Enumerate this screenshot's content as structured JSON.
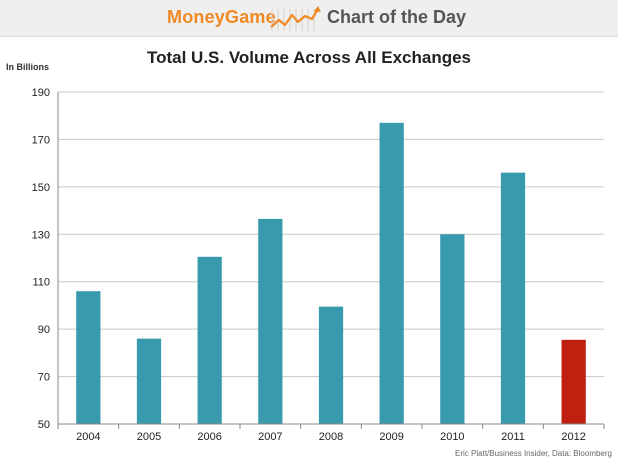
{
  "banner": {
    "brand": "MoneyGame",
    "subtitle": "Chart of the Day",
    "logo_icon": "rising-line-chart-icon",
    "colors": {
      "brand": "#f08a24",
      "subtitle": "#555555",
      "background": "#efefef"
    }
  },
  "chart_data": {
    "type": "bar",
    "title": "Total U.S. Volume Across All Exchanges",
    "ylabel": "In Billions",
    "xlabel": "",
    "categories": [
      "2004",
      "2005",
      "2006",
      "2007",
      "2008",
      "2009",
      "2010",
      "2011",
      "2012"
    ],
    "values": [
      106,
      86,
      120.5,
      136.5,
      99.5,
      177,
      130,
      156,
      85.5
    ],
    "colors": [
      "#3a9aad",
      "#3a9aad",
      "#3a9aad",
      "#3a9aad",
      "#3a9aad",
      "#3a9aad",
      "#3a9aad",
      "#3a9aad",
      "#c0200f"
    ],
    "ylim": [
      50,
      190
    ],
    "yticks": [
      50,
      70,
      90,
      110,
      130,
      150,
      170,
      190
    ],
    "grid": true,
    "legend": "none"
  },
  "footer": {
    "source": "Eric Platt/Business Insider, Data: Bloomberg"
  }
}
